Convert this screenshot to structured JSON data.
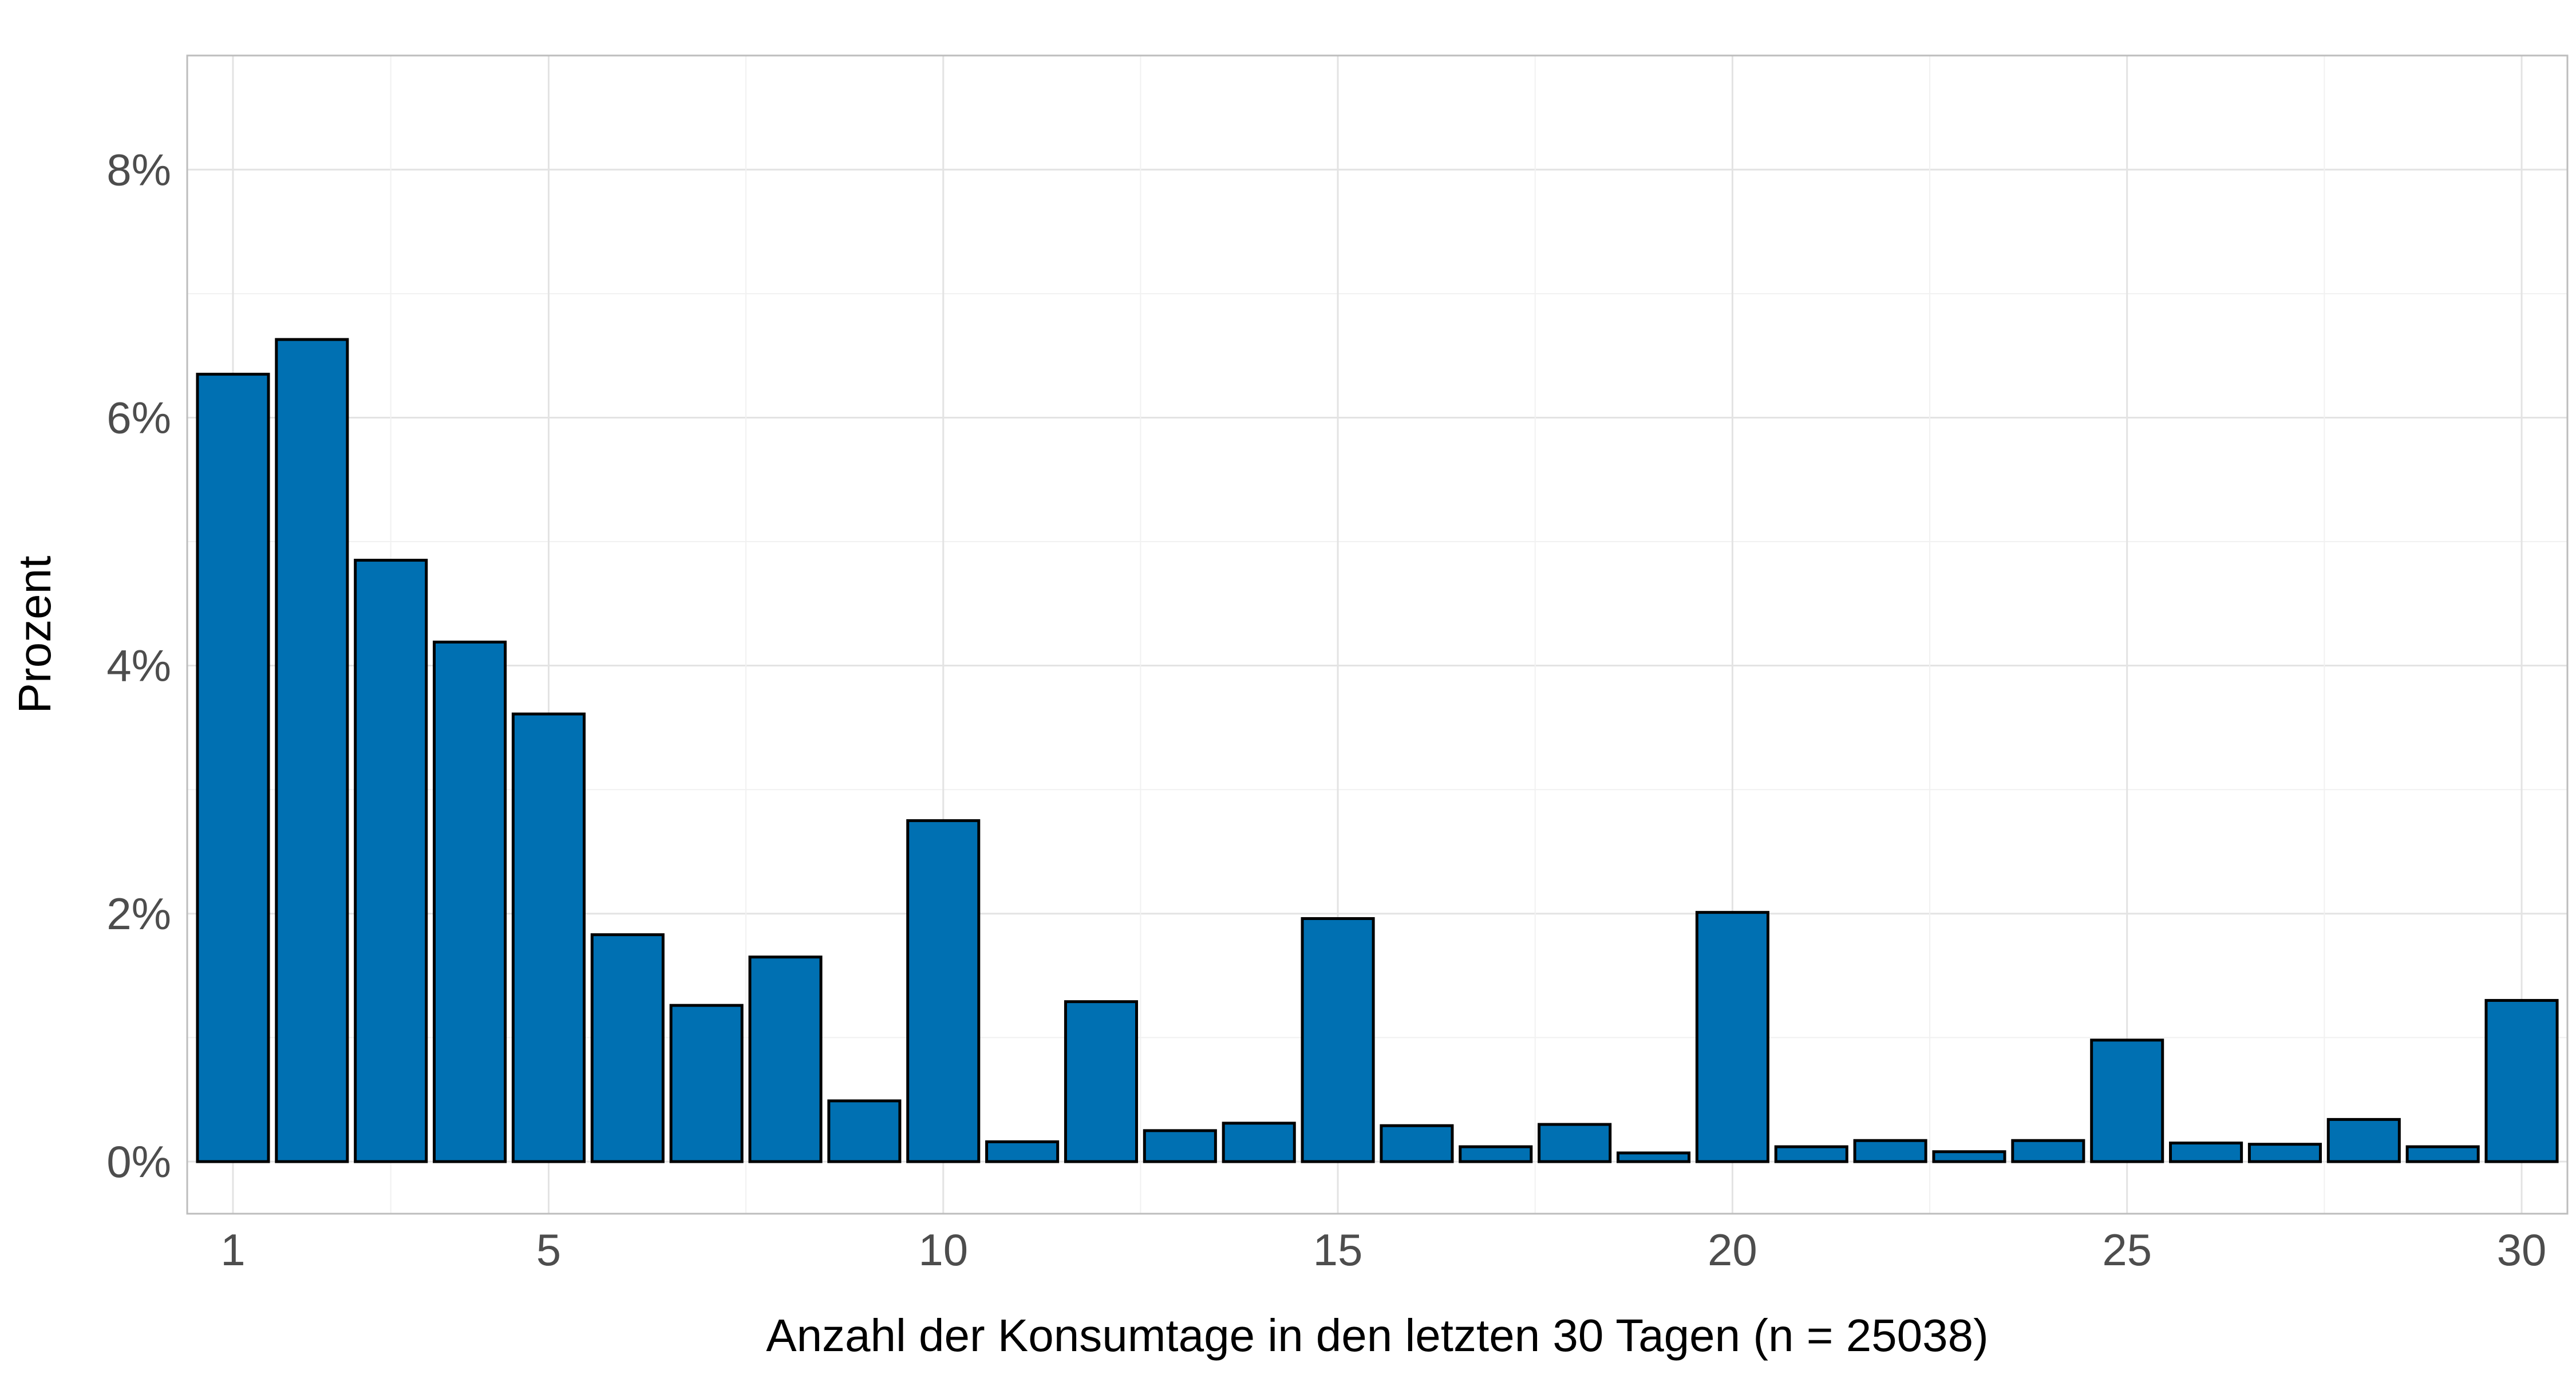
{
  "chart_data": {
    "type": "bar",
    "x": [
      1,
      2,
      3,
      4,
      5,
      6,
      7,
      8,
      9,
      10,
      11,
      12,
      13,
      14,
      15,
      16,
      17,
      18,
      19,
      20,
      21,
      22,
      23,
      24,
      25,
      26,
      27,
      28,
      29,
      30
    ],
    "values": [
      6.35,
      6.63,
      4.85,
      4.19,
      3.61,
      1.83,
      1.26,
      1.65,
      0.49,
      2.75,
      0.16,
      1.29,
      0.25,
      0.31,
      1.96,
      0.29,
      0.12,
      0.3,
      0.07,
      2.01,
      0.12,
      0.17,
      0.08,
      0.17,
      0.98,
      0.15,
      0.14,
      0.34,
      0.12,
      1.3
    ],
    "value_unit": "%",
    "xlabel": "Anzahl der Konsumtage in den letzten 30 Tagen (n = 25038)",
    "ylabel": "Prozent",
    "xlim": [
      0.42,
      30.58
    ],
    "ylim": [
      -0.42,
      8.92
    ],
    "x_ticks": [
      1,
      5,
      10,
      15,
      20,
      25,
      30
    ],
    "x_tick_labels": [
      "1",
      "5",
      "10",
      "15",
      "20",
      "25",
      "30"
    ],
    "y_ticks": [
      0,
      2,
      4,
      6,
      8
    ],
    "y_tick_labels": [
      "0%",
      "2%",
      "4%",
      "6%",
      "8%"
    ],
    "y_minor_ticks": [
      1,
      3,
      5,
      7
    ],
    "bar_color": "#0070b2",
    "bar_outline": "#000000",
    "grid": true,
    "legend": "none"
  }
}
